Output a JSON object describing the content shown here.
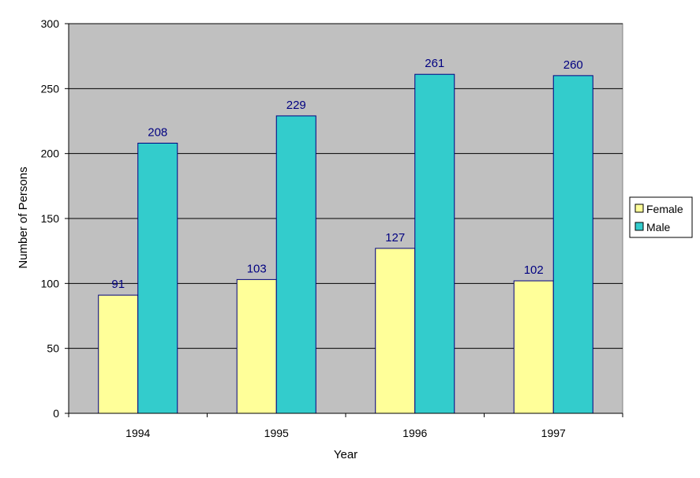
{
  "chart_data": {
    "type": "bar",
    "categories": [
      "1994",
      "1995",
      "1996",
      "1997"
    ],
    "series": [
      {
        "name": "Female",
        "values": [
          91,
          103,
          127,
          102
        ],
        "color": "#ffff99"
      },
      {
        "name": "Male",
        "values": [
          208,
          229,
          261,
          260
        ],
        "color": "#33cccc"
      }
    ],
    "xlabel": "Year",
    "ylabel": "Number of Persons",
    "ylim": [
      0,
      300
    ],
    "yticks": [
      0,
      50,
      100,
      150,
      200,
      250,
      300
    ],
    "grid": true,
    "plot_background": "#c0c0c0",
    "gridline_color": "#000000",
    "bar_border_color": "#000080",
    "data_label_color": "#000080",
    "legend_position": "right"
  }
}
